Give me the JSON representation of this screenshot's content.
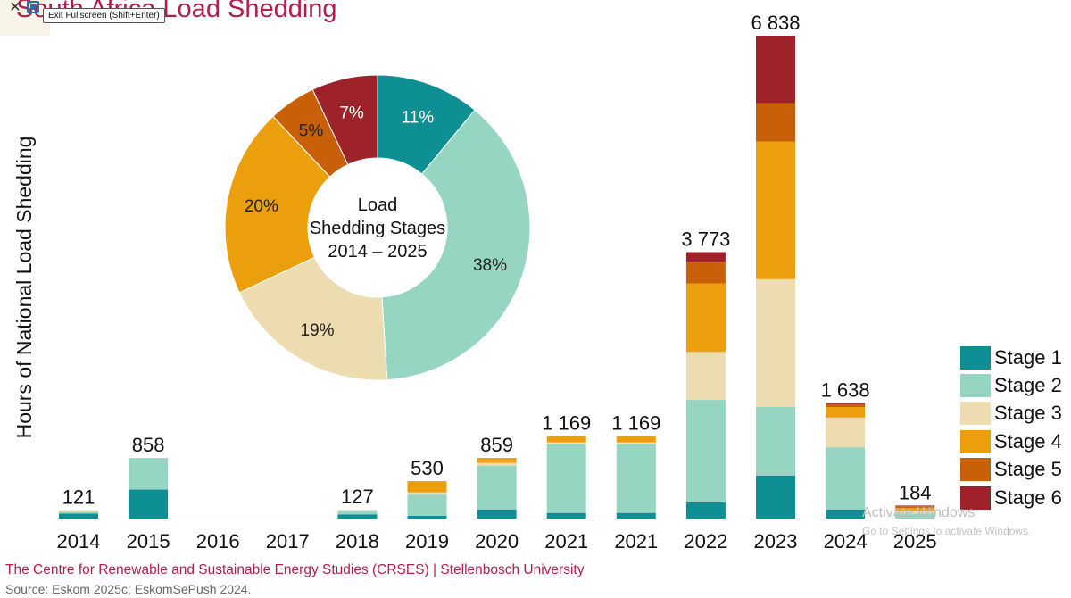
{
  "title": "South Africa Load Shedding",
  "tooltip": "Exit Fullscreen (Shift+Enter)",
  "colors": {
    "stage1": "#0e8f94",
    "stage2": "#96d5c2",
    "stage3": "#ecdcb0",
    "stage4": "#eb9f0c",
    "stage5": "#c8600a",
    "stage6": "#9e2229",
    "title": "#b21e4b"
  },
  "chart_data": [
    {
      "type": "bar",
      "stacked": true,
      "title": "",
      "ylabel": "Hours of National Load Shedding",
      "xlabel": "",
      "ylim": [
        0,
        6900
      ],
      "categories": [
        "2014",
        "2015",
        "2016",
        "2017",
        "2018",
        "2019",
        "2020",
        "2021",
        "2021",
        "2022",
        "2023",
        "2024",
        "2025"
      ],
      "totals": [
        121,
        858,
        0,
        0,
        127,
        530,
        859,
        1169,
        1169,
        3773,
        6838,
        1638,
        184
      ],
      "total_labels": [
        "121",
        "858",
        "",
        "",
        "127",
        "530",
        "859",
        "1 169",
        "1 169",
        "3 773",
        "6 838",
        "1 638",
        "184"
      ],
      "series": [
        {
          "name": "Stage 1",
          "color": "#0e8f94",
          "values": [
            70,
            410,
            0,
            0,
            60,
            40,
            130,
            80,
            80,
            230,
            610,
            130,
            0
          ]
        },
        {
          "name": "Stage 2",
          "color": "#96d5c2",
          "values": [
            25,
            448,
            0,
            0,
            50,
            300,
            620,
            970,
            970,
            1450,
            970,
            880,
            70
          ]
        },
        {
          "name": "Stage 3",
          "color": "#ecdcb0",
          "values": [
            26,
            0,
            0,
            0,
            17,
            30,
            40,
            30,
            30,
            680,
            1810,
            420,
            40
          ]
        },
        {
          "name": "Stage 4",
          "color": "#eb9f0c",
          "values": [
            0,
            0,
            0,
            0,
            0,
            160,
            69,
            89,
            89,
            970,
            1950,
            150,
            40
          ]
        },
        {
          "name": "Stage 5",
          "color": "#c8600a",
          "values": [
            0,
            0,
            0,
            0,
            0,
            0,
            0,
            0,
            0,
            310,
            540,
            40,
            24
          ]
        },
        {
          "name": "Stage 6",
          "color": "#9e2229",
          "values": [
            0,
            0,
            0,
            0,
            0,
            0,
            0,
            0,
            0,
            133,
            958,
            18,
            10
          ]
        }
      ],
      "legend_position": "bottom-right"
    },
    {
      "type": "pie",
      "donut": true,
      "center_label": [
        "Load",
        "Shedding Stages",
        "2014 – 2025"
      ],
      "labels": [
        "Stage 1",
        "Stage 2",
        "Stage 3",
        "Stage 4",
        "Stage 5",
        "Stage 6"
      ],
      "values": [
        11,
        38,
        19,
        20,
        5,
        7
      ],
      "value_labels": [
        "11%",
        "38%",
        "19%",
        "20%",
        "5%",
        "7%"
      ],
      "colors": [
        "#0e8f94",
        "#96d5c2",
        "#ecdcb0",
        "#eb9f0c",
        "#c8600a",
        "#9e2229"
      ]
    }
  ],
  "legend": [
    {
      "label": "Stage 1",
      "color": "#0e8f94"
    },
    {
      "label": "Stage 2",
      "color": "#96d5c2"
    },
    {
      "label": "Stage 3",
      "color": "#ecdcb0"
    },
    {
      "label": "Stage 4",
      "color": "#eb9f0c"
    },
    {
      "label": "Stage 5",
      "color": "#c8600a"
    },
    {
      "label": "Stage 6",
      "color": "#9e2229"
    }
  ],
  "footer": {
    "org": "The Centre for Renewable and Sustainable Energy Studies (CRSES) | Stellenbosch University",
    "source": "Source: Eskom 2025c; EskomSePush 2024."
  },
  "watermark": {
    "line1": "Activate Windows",
    "line2": "Go to Settings to activate Windows."
  }
}
